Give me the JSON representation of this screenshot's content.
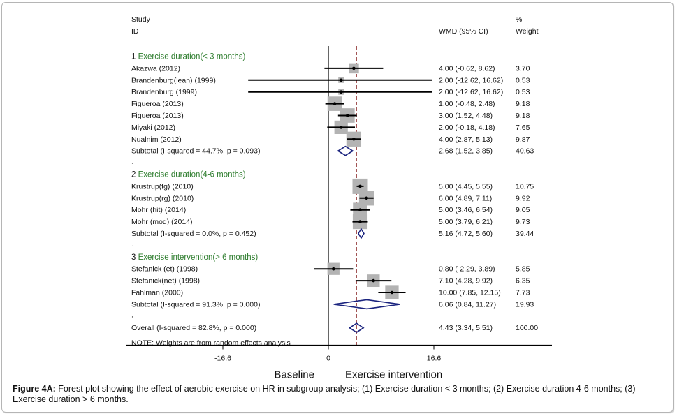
{
  "chart_data": {
    "type": "forest",
    "columns": {
      "study_header": [
        "Study",
        "ID"
      ],
      "effect_header": "WMD (95% CI)",
      "weight_header": [
        "%",
        "Weight"
      ]
    },
    "xaxis": {
      "ticks": [
        -16.6,
        0,
        16.6
      ],
      "tick_labels": [
        "-16.6",
        "0",
        "16.6"
      ],
      "left_label": "Baseline",
      "right_label": "Exercise intervention",
      "range": [
        -16.6,
        16.6
      ]
    },
    "overall_reference": 4.43,
    "groups": [
      {
        "number": "1",
        "label": "Exercise duration(< 3 months)",
        "studies": [
          {
            "id": "Akazwa  (2012)",
            "wmd": 4.0,
            "lo": -0.62,
            "hi": 8.62,
            "ci_text": "4.00 (-0.62, 8.62)",
            "weight": "3.70",
            "arrow": false
          },
          {
            "id": "Brandenburg(lean) (1999)",
            "wmd": 2.0,
            "lo": -12.62,
            "hi": 16.62,
            "ci_text": "2.00 (-12.62, 16.62)",
            "weight": "0.53",
            "arrow": false
          },
          {
            "id": "Brandenburg (1999)",
            "wmd": 2.0,
            "lo": -12.62,
            "hi": 16.62,
            "ci_text": "2.00 (-12.62, 16.62)",
            "weight": "0.53",
            "arrow": false
          },
          {
            "id": "Figueroa (2013)",
            "wmd": 1.0,
            "lo": -0.48,
            "hi": 2.48,
            "ci_text": "1.00 (-0.48, 2.48)",
            "weight": "9.18"
          },
          {
            "id": "Figueroa (2013)",
            "wmd": 3.0,
            "lo": 1.52,
            "hi": 4.48,
            "ci_text": "3.00 (1.52, 4.48)",
            "weight": "9.18"
          },
          {
            "id": "Miyaki  (2012)",
            "wmd": 2.0,
            "lo": -0.18,
            "hi": 4.18,
            "ci_text": "2.00 (-0.18, 4.18)",
            "weight": "7.65"
          },
          {
            "id": "Nualnim  (2012)",
            "wmd": 4.0,
            "lo": 2.87,
            "hi": 5.13,
            "ci_text": "4.00 (2.87, 5.13)",
            "weight": "9.87"
          }
        ],
        "subtotal": {
          "label": "Subtotal  (I-squared = 44.7%, p = 0.093)",
          "wmd": 2.68,
          "lo": 1.52,
          "hi": 3.85,
          "ci_text": "2.68 (1.52, 3.85)",
          "weight": "40.63"
        }
      },
      {
        "number": "2",
        "label": "Exercise duration(4-6 months)",
        "studies": [
          {
            "id": "Krustrup(fg) (2010)",
            "wmd": 5.0,
            "lo": 4.45,
            "hi": 5.55,
            "ci_text": "5.00 (4.45, 5.55)",
            "weight": "10.75"
          },
          {
            "id": "Krustrup(rg) (2010)",
            "wmd": 6.0,
            "lo": 4.89,
            "hi": 7.11,
            "ci_text": "6.00 (4.89, 7.11)",
            "weight": "9.92"
          },
          {
            "id": "Mohr (hit) (2014)",
            "wmd": 5.0,
            "lo": 3.46,
            "hi": 6.54,
            "ci_text": "5.00 (3.46, 6.54)",
            "weight": "9.05"
          },
          {
            "id": "Mohr (mod) (2014)",
            "wmd": 5.0,
            "lo": 3.79,
            "hi": 6.21,
            "ci_text": "5.00 (3.79, 6.21)",
            "weight": "9.73"
          }
        ],
        "subtotal": {
          "label": "Subtotal  (I-squared = 0.0%, p = 0.452)",
          "wmd": 5.16,
          "lo": 4.72,
          "hi": 5.6,
          "ci_text": "5.16 (4.72, 5.60)",
          "weight": "39.44"
        }
      },
      {
        "number": "3",
        "label": "Exercise intervention(> 6 months)",
        "studies": [
          {
            "id": "Stefanick (et) (1998)",
            "wmd": 0.8,
            "lo": -2.29,
            "hi": 3.89,
            "ci_text": "0.80 (-2.29, 3.89)",
            "weight": "5.85"
          },
          {
            "id": "Stefanick(net) (1998)",
            "wmd": 7.1,
            "lo": 4.28,
            "hi": 9.92,
            "ci_text": "7.10 (4.28, 9.92)",
            "weight": "6.35"
          },
          {
            "id": "Fahlman (2000)",
            "wmd": 10.0,
            "lo": 7.85,
            "hi": 12.15,
            "ci_text": "10.00 (7.85, 12.15)",
            "weight": "7.73"
          }
        ],
        "subtotal": {
          "label": "Subtotal  (I-squared = 91.3%, p = 0.000)",
          "wmd": 6.06,
          "lo": 0.84,
          "hi": 11.27,
          "ci_text": "6.06 (0.84, 11.27)",
          "weight": "19.93"
        }
      }
    ],
    "overall": {
      "label": "Overall  (I-squared = 82.8%, p = 0.000)",
      "wmd": 4.43,
      "lo": 3.34,
      "hi": 5.51,
      "ci_text": "4.43 (3.34, 5.51)",
      "weight": "100.00"
    },
    "note": "NOTE: Weights are from random effects analysis",
    "spacer_text": ".",
    "colors": {
      "group_label": "#2e7d2e",
      "box": "#b3b3b3",
      "diamond": "#1a237e",
      "reference_line": "#8b2a2a",
      "line": "#000000"
    }
  },
  "caption": {
    "bold": "Figure 4A:",
    "text": " Forest plot showing the effect of aerobic exercise on HR in subgroup analysis; (1) Exercise duration < 3 months; (2) Exercise duration 4-6 months; (3) Exercise duration > 6 months."
  }
}
